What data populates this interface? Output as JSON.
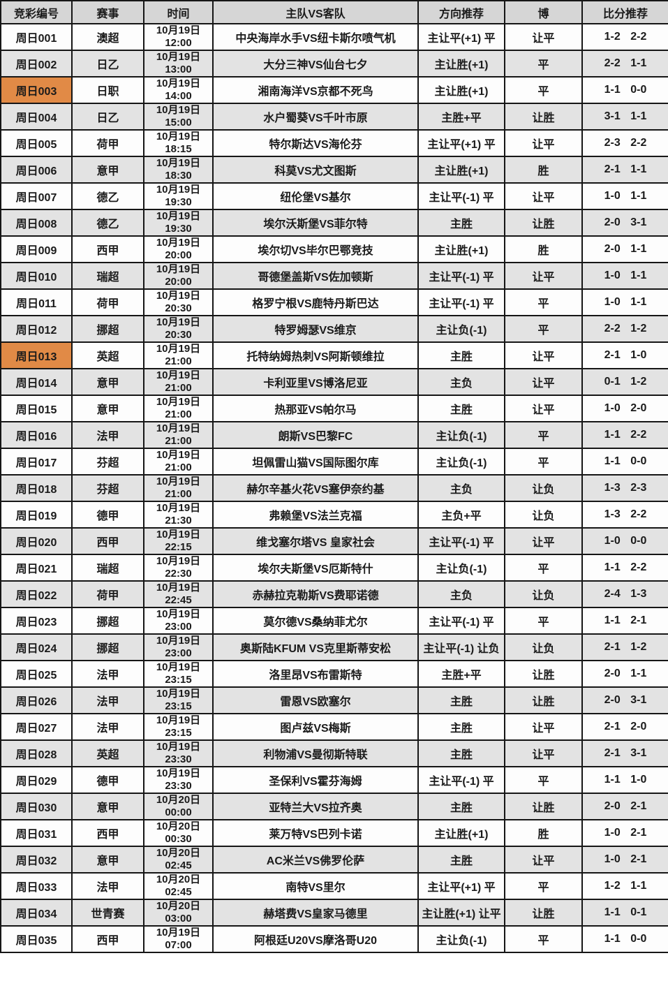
{
  "colors": {
    "header_bg": "#d6d6d6",
    "row_bg": "#fdfdfd",
    "row_alt_bg": "#e3e3e3",
    "highlight_bg": "#e18a46",
    "border": "#161616",
    "text": "#1a1a1a"
  },
  "table": {
    "headers": [
      "竞彩编号",
      "赛事",
      "时间",
      "主队VS客队",
      "方向推荐",
      "博",
      "比分推荐"
    ],
    "rows": [
      {
        "id": "周日001",
        "league": "澳超",
        "date": "10月19日",
        "time": "12:00",
        "match": "中央海岸水手VS纽卡斯尔喷气机",
        "direction": "主让平(+1) 平",
        "bet": "让平",
        "score": "1-2 2-2",
        "highlight": false
      },
      {
        "id": "周日002",
        "league": "日乙",
        "date": "10月19日",
        "time": "13:00",
        "match": "大分三神VS仙台七夕",
        "direction": "主让胜(+1)",
        "bet": "平",
        "score": "2-2 1-1",
        "highlight": false
      },
      {
        "id": "周日003",
        "league": "日职",
        "date": "10月19日",
        "time": "14:00",
        "match": "湘南海洋VS京都不死鸟",
        "direction": "主让胜(+1)",
        "bet": "平",
        "score": "1-1 0-0",
        "highlight": true
      },
      {
        "id": "周日004",
        "league": "日乙",
        "date": "10月19日",
        "time": "15:00",
        "match": "水户蜀葵VS千叶市原",
        "direction": "主胜+平",
        "bet": "让胜",
        "score": "3-1 1-1",
        "highlight": false
      },
      {
        "id": "周日005",
        "league": "荷甲",
        "date": "10月19日",
        "time": "18:15",
        "match": "特尔斯达VS海伦芬",
        "direction": "主让平(+1) 平",
        "bet": "让平",
        "score": "2-3 2-2",
        "highlight": false
      },
      {
        "id": "周日006",
        "league": "意甲",
        "date": "10月19日",
        "time": "18:30",
        "match": "科莫VS尤文图斯",
        "direction": "主让胜(+1)",
        "bet": "胜",
        "score": "2-1 1-1",
        "highlight": true
      },
      {
        "id": "周日007",
        "league": "德乙",
        "date": "10月19日",
        "time": "19:30",
        "match": "纽伦堡VS基尔",
        "direction": "主让平(-1) 平",
        "bet": "让平",
        "score": "1-0 1-1",
        "highlight": false
      },
      {
        "id": "周日008",
        "league": "德乙",
        "date": "10月19日",
        "time": "19:30",
        "match": "埃尔沃斯堡VS菲尔特",
        "direction": "主胜",
        "bet": "让胜",
        "score": "2-0 3-1",
        "highlight": false
      },
      {
        "id": "周日009",
        "league": "西甲",
        "date": "10月19日",
        "time": "20:00",
        "match": "埃尔切VS毕尔巴鄂竞技",
        "direction": "主让胜(+1)",
        "bet": "胜",
        "score": "2-0 1-1",
        "highlight": false
      },
      {
        "id": "周日010",
        "league": "瑞超",
        "date": "10月19日",
        "time": "20:00",
        "match": "哥德堡盖斯VS佐加顿斯",
        "direction": "主让平(-1) 平",
        "bet": "让平",
        "score": "1-0 1-1",
        "highlight": false
      },
      {
        "id": "周日011",
        "league": "荷甲",
        "date": "10月19日",
        "time": "20:30",
        "match": "格罗宁根VS鹿特丹斯巴达",
        "direction": "主让平(-1) 平",
        "bet": "平",
        "score": "1-0 1-1",
        "highlight": false
      },
      {
        "id": "周日012",
        "league": "挪超",
        "date": "10月19日",
        "time": "20:30",
        "match": "特罗姆瑟VS维京",
        "direction": "主让负(-1)",
        "bet": "平",
        "score": "2-2 1-2",
        "highlight": false
      },
      {
        "id": "周日013",
        "league": "英超",
        "date": "10月19日",
        "time": "21:00",
        "match": "托特纳姆热刺VS阿斯顿维拉",
        "direction": "主胜",
        "bet": "让平",
        "score": "2-1 1-0",
        "highlight": true
      },
      {
        "id": "周日014",
        "league": "意甲",
        "date": "10月19日",
        "time": "21:00",
        "match": "卡利亚里VS博洛尼亚",
        "direction": "主负",
        "bet": "让平",
        "score": "0-1 1-2",
        "highlight": false
      },
      {
        "id": "周日015",
        "league": "意甲",
        "date": "10月19日",
        "time": "21:00",
        "match": "热那亚VS帕尔马",
        "direction": "主胜",
        "bet": "让平",
        "score": "1-0 2-0",
        "highlight": false
      },
      {
        "id": "周日016",
        "league": "法甲",
        "date": "10月19日",
        "time": "21:00",
        "match": "朗斯VS巴黎FC",
        "direction": "主让负(-1)",
        "bet": "平",
        "score": "1-1 2-2",
        "highlight": false
      },
      {
        "id": "周日017",
        "league": "芬超",
        "date": "10月19日",
        "time": "21:00",
        "match": "坦佩雷山猫VS国际图尔库",
        "direction": "主让负(-1)",
        "bet": "平",
        "score": "1-1 0-0",
        "highlight": false
      },
      {
        "id": "周日018",
        "league": "芬超",
        "date": "10月19日",
        "time": "21:00",
        "match": "赫尔辛基火花VS塞伊奈约基",
        "direction": "主负",
        "bet": "让负",
        "score": "1-3 2-3",
        "highlight": false
      },
      {
        "id": "周日019",
        "league": "德甲",
        "date": "10月19日",
        "time": "21:30",
        "match": "弗赖堡VS法兰克福",
        "direction": "主负+平",
        "bet": "让负",
        "score": "1-3 2-2",
        "highlight": false
      },
      {
        "id": "周日020",
        "league": "西甲",
        "date": "10月19日",
        "time": "22:15",
        "match": "维戈塞尔塔VS 皇家社会",
        "direction": "主让平(-1) 平",
        "bet": "让平",
        "score": "1-0 0-0",
        "highlight": false
      },
      {
        "id": "周日021",
        "league": "瑞超",
        "date": "10月19日",
        "time": "22:30",
        "match": "埃尔夫斯堡VS厄斯特什",
        "direction": "主让负(-1)",
        "bet": "平",
        "score": "1-1 2-2",
        "highlight": false
      },
      {
        "id": "周日022",
        "league": "荷甲",
        "date": "10月19日",
        "time": "22:45",
        "match": "赤赫拉克勒斯VS费耶诺德",
        "direction": "主负",
        "bet": "让负",
        "score": "2-4 1-3",
        "highlight": false
      },
      {
        "id": "周日023",
        "league": "挪超",
        "date": "10月19日",
        "time": "23:00",
        "match": "莫尔德VS桑纳菲尤尔",
        "direction": "主让平(-1) 平",
        "bet": "平",
        "score": "1-1 2-1",
        "highlight": false
      },
      {
        "id": "周日024",
        "league": "挪超",
        "date": "10月19日",
        "time": "23:00",
        "match": "奥斯陆KFUM VS克里斯蒂安松",
        "direction": "主让平(-1) 让负",
        "bet": "让负",
        "score": "2-1 1-2",
        "highlight": false
      },
      {
        "id": "周日025",
        "league": "法甲",
        "date": "10月19日",
        "time": "23:15",
        "match": "洛里昂VS布雷斯特",
        "direction": "主胜+平",
        "bet": "让胜",
        "score": "2-0 1-1",
        "highlight": false
      },
      {
        "id": "周日026",
        "league": "法甲",
        "date": "10月19日",
        "time": "23:15",
        "match": "雷恩VS欧塞尔",
        "direction": "主胜",
        "bet": "让胜",
        "score": "2-0 3-1",
        "highlight": false
      },
      {
        "id": "周日027",
        "league": "法甲",
        "date": "10月19日",
        "time": "23:15",
        "match": "图卢兹VS梅斯",
        "direction": "主胜",
        "bet": "让平",
        "score": "2-1 2-0",
        "highlight": false
      },
      {
        "id": "周日028",
        "league": "英超",
        "date": "10月19日",
        "time": "23:30",
        "match": "利物浦VS曼彻斯特联",
        "direction": "主胜",
        "bet": "让平",
        "score": "2-1 3-1",
        "highlight": true
      },
      {
        "id": "周日029",
        "league": "德甲",
        "date": "10月19日",
        "time": "23:30",
        "match": "圣保利VS霍芬海姆",
        "direction": "主让平(-1) 平",
        "bet": "平",
        "score": "1-1 1-0",
        "highlight": false
      },
      {
        "id": "周日030",
        "league": "意甲",
        "date": "10月20日",
        "time": "00:00",
        "match": "亚特兰大VS拉齐奥",
        "direction": "主胜",
        "bet": "让胜",
        "score": "2-0 2-1",
        "highlight": false
      },
      {
        "id": "周日031",
        "league": "西甲",
        "date": "10月20日",
        "time": "00:30",
        "match": "莱万特VS巴列卡诺",
        "direction": "主让胜(+1)",
        "bet": "胜",
        "score": "1-0 2-1",
        "highlight": false
      },
      {
        "id": "周日032",
        "league": "意甲",
        "date": "10月20日",
        "time": "02:45",
        "match": "AC米兰VS佛罗伦萨",
        "direction": "主胜",
        "bet": "让平",
        "score": "1-0 2-1",
        "highlight": true
      },
      {
        "id": "周日033",
        "league": "法甲",
        "date": "10月20日",
        "time": "02:45",
        "match": "南特VS里尔",
        "direction": "主让平(+1) 平",
        "bet": "平",
        "score": "1-2 1-1",
        "highlight": false
      },
      {
        "id": "周日034",
        "league": "世青赛",
        "date": "10月20日",
        "time": "03:00",
        "match": "赫塔费VS皇家马德里",
        "direction": "主让胜(+1) 让平",
        "bet": "让胜",
        "score": "1-1 0-1",
        "highlight": false
      },
      {
        "id": "周日035",
        "league": "西甲",
        "date": "10月19日",
        "time": "07:00",
        "match": "阿根廷U20VS摩洛哥U20",
        "direction": "主让负(-1)",
        "bet": "平",
        "score": "1-1 0-0",
        "highlight": false
      }
    ]
  }
}
